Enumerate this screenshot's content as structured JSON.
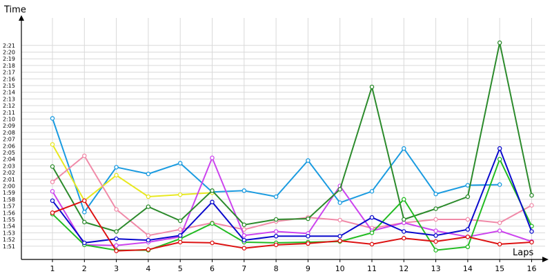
{
  "chart_data": {
    "type": "line",
    "xlabel": "Laps",
    "ylabel": "Time",
    "x": [
      1,
      2,
      3,
      4,
      5,
      6,
      7,
      8,
      9,
      10,
      11,
      12,
      13,
      14,
      15,
      16
    ],
    "xlim": [
      1,
      16
    ],
    "ylim_seconds": [
      110,
      142
    ],
    "yticks": [
      "1:51",
      "1:52",
      "1:53",
      "1:54",
      "1:55",
      "1:56",
      "1:57",
      "1:58",
      "1:59",
      "2:00",
      "2:01",
      "2:02",
      "2:03",
      "2:04",
      "2:05",
      "2:06",
      "2:07",
      "2:08",
      "2:09",
      "2:10",
      "2:11",
      "2:12",
      "2:13",
      "2:14",
      "2:15",
      "2:16",
      "2:17",
      "2:18",
      "2:19",
      "2:20",
      "2:21"
    ],
    "grid": true,
    "series": [
      {
        "color": "#1a9be0",
        "values": [
          130.1,
          116.1,
          122.8,
          121.8,
          123.4,
          119.1,
          119.3,
          118.4,
          123.8,
          117.5,
          119.2,
          125.6,
          118.8,
          120.1,
          120.2,
          null
        ]
      },
      {
        "color": "#e8e820",
        "values": [
          126.2,
          117.8,
          121.6,
          118.4,
          118.7,
          119.0,
          null,
          null,
          null,
          null,
          null,
          null,
          null,
          null,
          null,
          null
        ]
      },
      {
        "color": "#f08aa8",
        "values": [
          120.6,
          124.5,
          116.5,
          112.6,
          113.5,
          114.5,
          113.5,
          114.7,
          115.3,
          114.9,
          113.7,
          114.5,
          115.0,
          115.0,
          114.5,
          117.1
        ]
      },
      {
        "color": "#cc44ee",
        "values": [
          119.2,
          111.2,
          111.1,
          111.6,
          112.4,
          124.2,
          112.6,
          113.2,
          112.9,
          120.0,
          113.3,
          114.5,
          113.3,
          112.4,
          113.3,
          111.7
        ]
      },
      {
        "color": "#2b8a2b",
        "values": [
          122.9,
          114.6,
          113.2,
          116.9,
          114.8,
          119.3,
          114.2,
          115.0,
          115.1,
          119.5,
          134.8,
          115.0,
          116.6,
          118.4,
          141.4,
          118.6
        ]
      },
      {
        "color": "#22bb22",
        "values": [
          115.8,
          111.2,
          110.4,
          110.4,
          112.1,
          114.4,
          111.6,
          111.5,
          111.6,
          111.7,
          113.0,
          118.0,
          110.4,
          110.9,
          124.0,
          114.0
        ]
      },
      {
        "color": "#0a0acc",
        "values": [
          117.8,
          111.5,
          112.1,
          111.9,
          112.6,
          117.6,
          111.9,
          112.5,
          112.5,
          112.5,
          115.3,
          113.2,
          112.6,
          113.5,
          125.6,
          113.2
        ]
      },
      {
        "color": "#dd1111",
        "values": [
          116.0,
          117.8,
          110.3,
          110.5,
          111.6,
          111.5,
          110.7,
          111.2,
          111.4,
          111.8,
          111.3,
          112.2,
          111.7,
          112.4,
          111.3,
          111.6
        ]
      }
    ]
  }
}
